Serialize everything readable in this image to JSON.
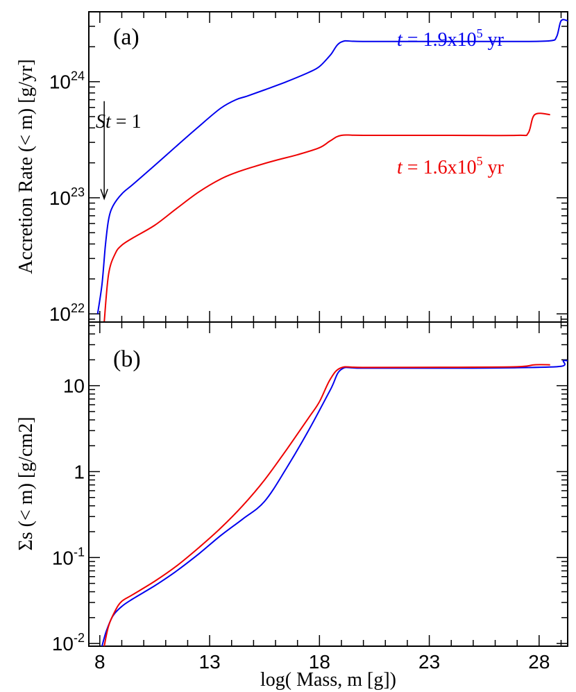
{
  "chart_data": [
    {
      "panel_label": "(a)",
      "type": "line",
      "xlabel": "log( Mass, m [g])",
      "ylabel": "Accretion Rate (< m) [g/yr]",
      "yscale": "log",
      "xlim": [
        7.5,
        29.3
      ],
      "ylim": [
        8.5e+21,
        4e+24
      ],
      "y_ticks": [
        {
          "value": 1e+22,
          "base": "10",
          "exp": "22"
        },
        {
          "value": 1e+23,
          "base": "10",
          "exp": "23"
        },
        {
          "value": 1e+24,
          "base": "10",
          "exp": "24"
        }
      ],
      "annotation": {
        "text_italic": "St",
        "text_rest": " = 1",
        "x": 8.2,
        "y_from": 6.8e+23,
        "y_to": 9.8e+22
      },
      "series": [
        {
          "label_italic": "t",
          "label_text": " = 1.9x10",
          "label_exp": "5",
          "label_unit": " yr",
          "color": "#0000ee",
          "x": [
            7.9,
            8.1,
            8.25,
            8.4,
            8.6,
            9.0,
            9.5,
            10.5,
            11.5,
            12.5,
            13.5,
            14.2,
            14.7,
            15.5,
            16.5,
            17.5,
            18.0,
            18.5,
            19.0,
            20.0,
            24.0,
            27.0,
            28.5,
            28.8,
            29.0,
            29.3
          ],
          "y": [
            1e+22,
            1.8e+22,
            3.8e+22,
            6.5e+22,
            8.5e+22,
            1.08e+23,
            1.3e+23,
            1.9e+23,
            2.8e+23,
            4.1e+23,
            5.9e+23,
            7e+23,
            7.5e+23,
            8.5e+23,
            1e+24,
            1.2e+24,
            1.35e+24,
            1.7e+24,
            2.2e+24,
            2.22e+24,
            2.22e+24,
            2.22e+24,
            2.25e+24,
            2.45e+24,
            3.35e+24,
            3.35e+24
          ]
        },
        {
          "label_italic": "t",
          "label_text": " = 1.6x10",
          "label_exp": "5",
          "label_unit": " yr",
          "color": "#ee0000",
          "x": [
            8.2,
            8.4,
            8.7,
            9.0,
            9.5,
            10.5,
            11.5,
            12.5,
            13.5,
            14.2,
            15.0,
            16.0,
            17.0,
            18.0,
            18.5,
            19.0,
            20.0,
            24.0,
            27.0,
            27.5,
            27.8,
            28.5
          ],
          "y": [
            8.5e+21,
            2.2e+22,
            3.3e+22,
            3.9e+22,
            4.5e+22,
            5.8e+22,
            8.1e+22,
            1.12e+23,
            1.45e+23,
            1.65e+23,
            1.85e+23,
            2.1e+23,
            2.35e+23,
            2.7e+23,
            3.1e+23,
            3.45e+23,
            3.45e+23,
            3.45e+23,
            3.45e+23,
            3.6e+23,
            5.2e+23,
            5.2e+23
          ]
        }
      ]
    },
    {
      "panel_label": "(b)",
      "type": "line",
      "xlabel": "log( Mass, m [g])",
      "ylabel": "Σs (< m) [g/cm2]",
      "yscale": "log",
      "xlim": [
        7.5,
        29.3
      ],
      "ylim": [
        0.0093,
        55
      ],
      "x_ticks": [
        {
          "value": 8,
          "label": "8"
        },
        {
          "value": 13,
          "label": "13"
        },
        {
          "value": 18,
          "label": "18"
        },
        {
          "value": 23,
          "label": "23"
        },
        {
          "value": 28,
          "label": "28"
        }
      ],
      "y_ticks": [
        {
          "value": 0.01,
          "base": "10",
          "exp": "-2"
        },
        {
          "value": 0.1,
          "base": "10",
          "exp": "-1"
        },
        {
          "value": 1,
          "base": "1",
          "exp": ""
        },
        {
          "value": 10,
          "base": "10",
          "exp": ""
        }
      ],
      "series": [
        {
          "color": "#0000ee",
          "x": [
            8.1,
            8.3,
            8.6,
            9.0,
            9.5,
            10.5,
            11.5,
            12.5,
            13.5,
            14.5,
            15.5,
            16.5,
            17.5,
            18.5,
            19.0,
            20.0,
            24.0,
            27.0,
            29.0,
            29.1,
            29.3
          ],
          "y": [
            0.0093,
            0.014,
            0.021,
            0.027,
            0.033,
            0.047,
            0.07,
            0.11,
            0.18,
            0.28,
            0.45,
            1.1,
            3.0,
            9.0,
            15.5,
            16.0,
            16.0,
            16.2,
            16.8,
            19.5,
            19.5
          ]
        },
        {
          "color": "#ee0000",
          "x": [
            8.2,
            8.4,
            8.7,
            9.0,
            9.5,
            10.5,
            11.5,
            12.5,
            13.5,
            14.5,
            15.5,
            16.5,
            17.5,
            18.0,
            18.5,
            19.0,
            20.0,
            24.0,
            27.0,
            27.8,
            28.5
          ],
          "y": [
            0.0093,
            0.016,
            0.024,
            0.031,
            0.037,
            0.053,
            0.08,
            0.13,
            0.22,
            0.4,
            0.8,
            1.8,
            4.2,
            6.5,
            12.0,
            16.2,
            16.3,
            16.4,
            16.6,
            17.5,
            17.5
          ]
        }
      ]
    }
  ]
}
